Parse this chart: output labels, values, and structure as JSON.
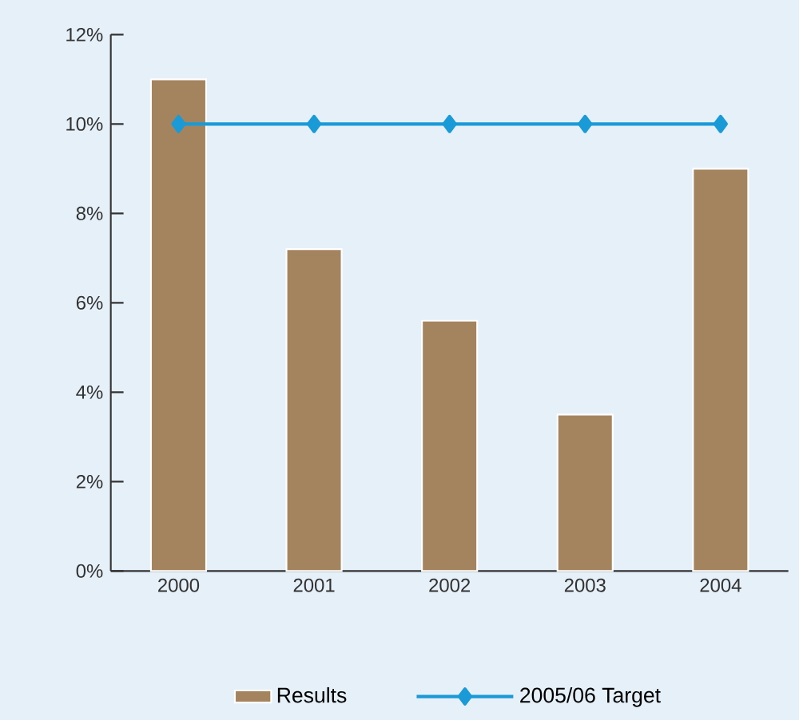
{
  "chart_data": {
    "type": "bar",
    "categories": [
      "2000",
      "2001",
      "2002",
      "2003",
      "2004"
    ],
    "series": [
      {
        "name": "Results",
        "color": "#a4845f",
        "values": [
          11.0,
          7.2,
          5.6,
          3.5,
          9.0
        ]
      },
      {
        "name": "2005/06 Target",
        "type": "line",
        "color": "#1a9ad6",
        "marker": "diamond",
        "values": [
          10,
          10,
          10,
          10,
          10
        ]
      }
    ],
    "ylim": [
      0,
      12
    ],
    "yticks": [
      {
        "value": 0,
        "label": "0%"
      },
      {
        "value": 2,
        "label": "2%"
      },
      {
        "value": 4,
        "label": "4%"
      },
      {
        "value": 6,
        "label": "6%"
      },
      {
        "value": 8,
        "label": "8%"
      },
      {
        "value": 10,
        "label": "10%"
      },
      {
        "value": 12,
        "label": "12%"
      }
    ],
    "grid": false,
    "legend": "bottom"
  }
}
